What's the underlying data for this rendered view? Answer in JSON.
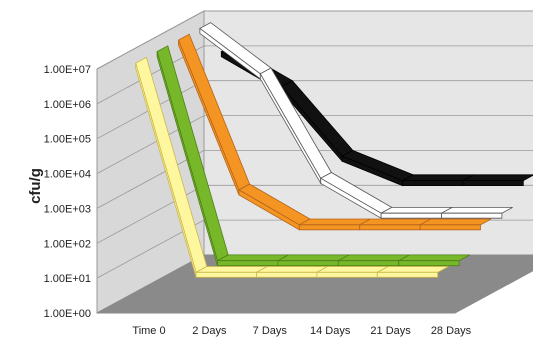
{
  "chart_data": {
    "type": "line",
    "title": "",
    "xlabel": "",
    "ylabel": "cfu/g",
    "y_scale": "log",
    "ylim": [
      1,
      10000000
    ],
    "y_tick_labels": [
      "1.00E+00",
      "1.00E+01",
      "1.00E+02",
      "1.00E+03",
      "1.00E+04",
      "1.00E+05",
      "1.00E+06",
      "1.00E+07"
    ],
    "categories": [
      "Time 0",
      "2 Days",
      "7 Days",
      "14 Days",
      "21 Days",
      "28 Days"
    ],
    "grid": true,
    "legend": "none",
    "style": "3d-ribbon",
    "series": [
      {
        "color": "#fff7a0",
        "edge": "#c9b84a",
        "values": [
          10000000,
          10,
          10,
          10,
          10,
          10
        ]
      },
      {
        "color": "#76b82a",
        "edge": "#4f7f18",
        "values": [
          10000000,
          10,
          10,
          10,
          10,
          10
        ]
      },
      {
        "color": "#f39423",
        "edge": "#b5651a",
        "values": [
          10000000,
          500,
          50,
          50,
          50,
          50
        ]
      },
      {
        "color": "#ffffff",
        "edge": "#555555",
        "values": [
          10000000,
          500000,
          500,
          50,
          50,
          50
        ]
      },
      {
        "color": "#111111",
        "edge": "#000000",
        "values": [
          1000000,
          100000,
          1000,
          200,
          200,
          200
        ]
      }
    ]
  }
}
